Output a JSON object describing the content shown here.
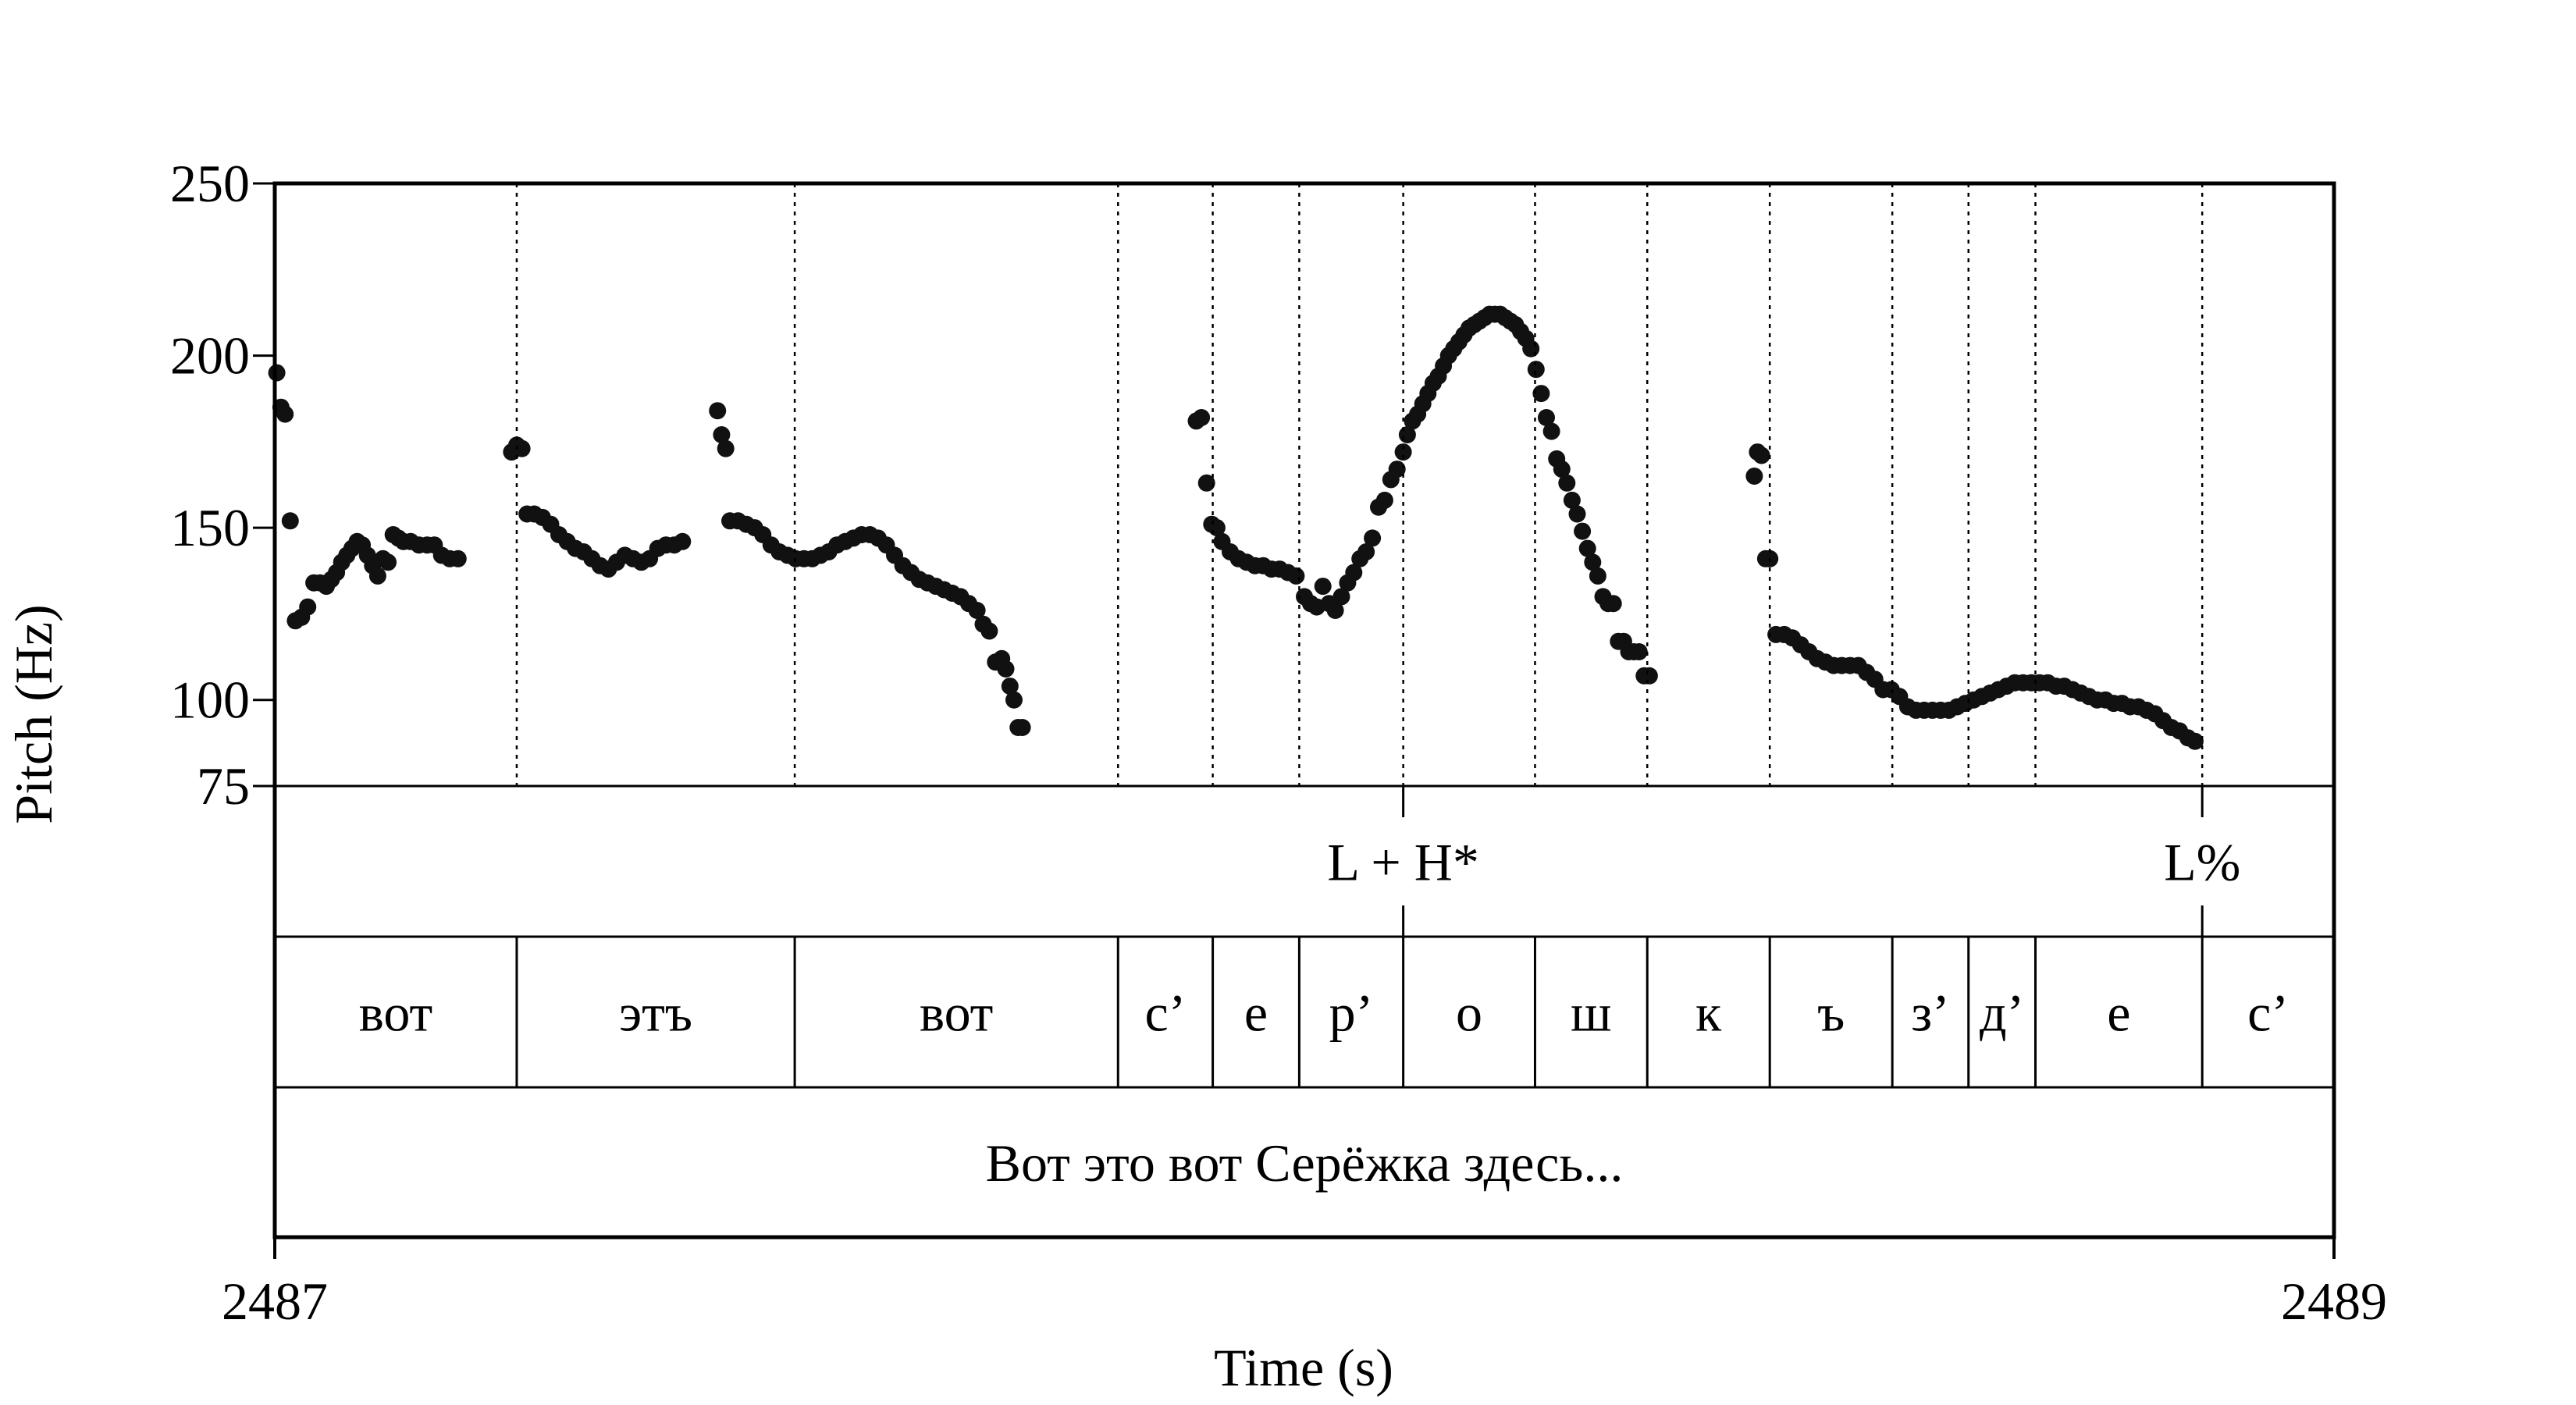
{
  "chart_data": {
    "type": "scatter",
    "xlabel": "Time (s)",
    "ylabel": "Pitch (Hz)",
    "xlim": [
      2487,
      2489
    ],
    "ylim": [
      75,
      250
    ],
    "yticks": [
      75,
      100,
      150,
      200,
      250
    ],
    "xtick_labels": [
      "2487",
      "2489"
    ],
    "grid": false,
    "colors": {
      "points": "#111111",
      "lines": "#000000"
    },
    "boundaries": [
      2487.235,
      2487.505,
      2487.819,
      2487.911,
      2487.995,
      2488.096,
      2488.224,
      2488.333,
      2488.452,
      2488.571,
      2488.645,
      2488.71,
      2488.872
    ],
    "tones_tier": [
      {
        "label": "L + H*",
        "time": 2488.096
      },
      {
        "label": "L%",
        "time": 2488.872
      }
    ],
    "segments_tier": [
      {
        "label": "вот",
        "start": 2487.0,
        "end": 2487.235
      },
      {
        "label": "этъ",
        "start": 2487.235,
        "end": 2487.505
      },
      {
        "label": "вот",
        "start": 2487.505,
        "end": 2487.819
      },
      {
        "label": "с’",
        "start": 2487.819,
        "end": 2487.911
      },
      {
        "label": "е",
        "start": 2487.911,
        "end": 2487.995
      },
      {
        "label": "р’",
        "start": 2487.995,
        "end": 2488.096
      },
      {
        "label": "о",
        "start": 2488.096,
        "end": 2488.224
      },
      {
        "label": "ш",
        "start": 2488.224,
        "end": 2488.333
      },
      {
        "label": "к",
        "start": 2488.333,
        "end": 2488.452
      },
      {
        "label": "ъ",
        "start": 2488.452,
        "end": 2488.571
      },
      {
        "label": "з’",
        "start": 2488.571,
        "end": 2488.645
      },
      {
        "label": "д’",
        "start": 2488.645,
        "end": 2488.71
      },
      {
        "label": "е",
        "start": 2488.71,
        "end": 2488.872
      },
      {
        "label": "с’",
        "start": 2488.872,
        "end": 2489.0
      }
    ],
    "sentence_tier": {
      "label": "Вот это вот Серёжка здесь...",
      "start": 2487.0,
      "end": 2489.0
    },
    "pitch_points": [
      [
        2487.002,
        195
      ],
      [
        2487.006,
        185
      ],
      [
        2487.01,
        183
      ],
      [
        2487.015,
        152
      ],
      [
        2487.02,
        123
      ],
      [
        2487.026,
        124
      ],
      [
        2487.032,
        127
      ],
      [
        2487.038,
        134
      ],
      [
        2487.044,
        134
      ],
      [
        2487.05,
        133
      ],
      [
        2487.055,
        135
      ],
      [
        2487.06,
        137
      ],
      [
        2487.065,
        140
      ],
      [
        2487.07,
        142
      ],
      [
        2487.075,
        144
      ],
      [
        2487.08,
        146
      ],
      [
        2487.085,
        145
      ],
      [
        2487.09,
        142
      ],
      [
        2487.095,
        139
      ],
      [
        2487.1,
        136
      ],
      [
        2487.105,
        141
      ],
      [
        2487.11,
        140
      ],
      [
        2487.115,
        148
      ],
      [
        2487.12,
        147
      ],
      [
        2487.125,
        146
      ],
      [
        2487.132,
        146
      ],
      [
        2487.14,
        145
      ],
      [
        2487.148,
        145
      ],
      [
        2487.155,
        145
      ],
      [
        2487.162,
        142
      ],
      [
        2487.17,
        141
      ],
      [
        2487.178,
        141
      ],
      [
        2487.23,
        172
      ],
      [
        2487.235,
        174
      ],
      [
        2487.24,
        173
      ],
      [
        2487.245,
        154
      ],
      [
        2487.252,
        154
      ],
      [
        2487.26,
        153
      ],
      [
        2487.268,
        151
      ],
      [
        2487.276,
        148
      ],
      [
        2487.284,
        146
      ],
      [
        2487.292,
        144
      ],
      [
        2487.3,
        143
      ],
      [
        2487.308,
        141
      ],
      [
        2487.316,
        139
      ],
      [
        2487.324,
        138
      ],
      [
        2487.332,
        140
      ],
      [
        2487.34,
        142
      ],
      [
        2487.348,
        141
      ],
      [
        2487.356,
        140
      ],
      [
        2487.364,
        141
      ],
      [
        2487.372,
        144
      ],
      [
        2487.38,
        145
      ],
      [
        2487.388,
        145
      ],
      [
        2487.396,
        146
      ],
      [
        2487.43,
        184
      ],
      [
        2487.434,
        177
      ],
      [
        2487.438,
        173
      ],
      [
        2487.442,
        152
      ],
      [
        2487.45,
        152
      ],
      [
        2487.458,
        151
      ],
      [
        2487.466,
        150
      ],
      [
        2487.474,
        148
      ],
      [
        2487.482,
        145
      ],
      [
        2487.49,
        143
      ],
      [
        2487.498,
        142
      ],
      [
        2487.506,
        141
      ],
      [
        2487.514,
        141
      ],
      [
        2487.522,
        141
      ],
      [
        2487.53,
        142
      ],
      [
        2487.538,
        143
      ],
      [
        2487.546,
        145
      ],
      [
        2487.554,
        146
      ],
      [
        2487.562,
        147
      ],
      [
        2487.57,
        148
      ],
      [
        2487.578,
        148
      ],
      [
        2487.586,
        147
      ],
      [
        2487.594,
        145
      ],
      [
        2487.602,
        142
      ],
      [
        2487.61,
        139
      ],
      [
        2487.618,
        137
      ],
      [
        2487.626,
        135
      ],
      [
        2487.634,
        134
      ],
      [
        2487.642,
        133
      ],
      [
        2487.65,
        132
      ],
      [
        2487.658,
        131
      ],
      [
        2487.666,
        130
      ],
      [
        2487.674,
        128
      ],
      [
        2487.682,
        126
      ],
      [
        2487.688,
        122
      ],
      [
        2487.694,
        120
      ],
      [
        2487.7,
        111
      ],
      [
        2487.706,
        112
      ],
      [
        2487.71,
        109
      ],
      [
        2487.714,
        104
      ],
      [
        2487.718,
        100
      ],
      [
        2487.722,
        92
      ],
      [
        2487.726,
        92
      ],
      [
        2487.895,
        181
      ],
      [
        2487.9,
        182
      ],
      [
        2487.905,
        163
      ],
      [
        2487.91,
        151
      ],
      [
        2487.915,
        150
      ],
      [
        2487.92,
        146
      ],
      [
        2487.928,
        143
      ],
      [
        2487.936,
        141
      ],
      [
        2487.944,
        140
      ],
      [
        2487.952,
        139
      ],
      [
        2487.96,
        139
      ],
      [
        2487.968,
        138
      ],
      [
        2487.976,
        138
      ],
      [
        2487.984,
        137
      ],
      [
        2487.992,
        136
      ],
      [
        2488.0,
        130
      ],
      [
        2488.006,
        128
      ],
      [
        2488.012,
        127
      ],
      [
        2488.018,
        133
      ],
      [
        2488.024,
        128
      ],
      [
        2488.03,
        126
      ],
      [
        2488.036,
        130
      ],
      [
        2488.042,
        134
      ],
      [
        2488.048,
        137
      ],
      [
        2488.054,
        141
      ],
      [
        2488.06,
        143
      ],
      [
        2488.066,
        147
      ],
      [
        2488.072,
        156
      ],
      [
        2488.078,
        158
      ],
      [
        2488.084,
        164
      ],
      [
        2488.09,
        167
      ],
      [
        2488.096,
        172
      ],
      [
        2488.1,
        177
      ],
      [
        2488.105,
        181
      ],
      [
        2488.11,
        183
      ],
      [
        2488.115,
        186
      ],
      [
        2488.12,
        189
      ],
      [
        2488.125,
        192
      ],
      [
        2488.13,
        194
      ],
      [
        2488.135,
        197
      ],
      [
        2488.14,
        200
      ],
      [
        2488.145,
        202
      ],
      [
        2488.15,
        204
      ],
      [
        2488.155,
        206
      ],
      [
        2488.16,
        208
      ],
      [
        2488.165,
        209
      ],
      [
        2488.17,
        210
      ],
      [
        2488.175,
        211
      ],
      [
        2488.18,
        212
      ],
      [
        2488.185,
        212
      ],
      [
        2488.19,
        212
      ],
      [
        2488.195,
        211
      ],
      [
        2488.2,
        210
      ],
      [
        2488.205,
        209
      ],
      [
        2488.21,
        207
      ],
      [
        2488.215,
        205
      ],
      [
        2488.22,
        202
      ],
      [
        2488.225,
        196
      ],
      [
        2488.23,
        189
      ],
      [
        2488.235,
        182
      ],
      [
        2488.24,
        178
      ],
      [
        2488.245,
        170
      ],
      [
        2488.25,
        167
      ],
      [
        2488.255,
        163
      ],
      [
        2488.26,
        158
      ],
      [
        2488.265,
        154
      ],
      [
        2488.27,
        149
      ],
      [
        2488.275,
        144
      ],
      [
        2488.28,
        140
      ],
      [
        2488.285,
        136
      ],
      [
        2488.29,
        130
      ],
      [
        2488.295,
        128
      ],
      [
        2488.3,
        128
      ],
      [
        2488.305,
        117
      ],
      [
        2488.31,
        117
      ],
      [
        2488.315,
        114
      ],
      [
        2488.32,
        114
      ],
      [
        2488.325,
        114
      ],
      [
        2488.33,
        107
      ],
      [
        2488.335,
        107
      ],
      [
        2488.437,
        165
      ],
      [
        2488.44,
        172
      ],
      [
        2488.444,
        171
      ],
      [
        2488.448,
        141
      ],
      [
        2488.452,
        141
      ],
      [
        2488.458,
        119
      ],
      [
        2488.466,
        119
      ],
      [
        2488.474,
        118
      ],
      [
        2488.482,
        116
      ],
      [
        2488.49,
        114
      ],
      [
        2488.498,
        112
      ],
      [
        2488.506,
        111
      ],
      [
        2488.514,
        110
      ],
      [
        2488.522,
        110
      ],
      [
        2488.53,
        110
      ],
      [
        2488.538,
        110
      ],
      [
        2488.546,
        108
      ],
      [
        2488.554,
        106
      ],
      [
        2488.562,
        103
      ],
      [
        2488.57,
        103
      ],
      [
        2488.578,
        101
      ],
      [
        2488.586,
        98
      ],
      [
        2488.594,
        97
      ],
      [
        2488.602,
        97
      ],
      [
        2488.61,
        97
      ],
      [
        2488.618,
        97
      ],
      [
        2488.626,
        97
      ],
      [
        2488.634,
        98
      ],
      [
        2488.642,
        99
      ],
      [
        2488.65,
        100
      ],
      [
        2488.658,
        101
      ],
      [
        2488.666,
        102
      ],
      [
        2488.674,
        103
      ],
      [
        2488.682,
        104
      ],
      [
        2488.69,
        105
      ],
      [
        2488.698,
        105
      ],
      [
        2488.706,
        105
      ],
      [
        2488.714,
        105
      ],
      [
        2488.722,
        105
      ],
      [
        2488.73,
        104
      ],
      [
        2488.738,
        104
      ],
      [
        2488.746,
        103
      ],
      [
        2488.754,
        102
      ],
      [
        2488.762,
        101
      ],
      [
        2488.77,
        100
      ],
      [
        2488.778,
        100
      ],
      [
        2488.786,
        99
      ],
      [
        2488.794,
        99
      ],
      [
        2488.802,
        98
      ],
      [
        2488.81,
        98
      ],
      [
        2488.818,
        97
      ],
      [
        2488.826,
        96
      ],
      [
        2488.834,
        94
      ],
      [
        2488.842,
        92
      ],
      [
        2488.85,
        91
      ],
      [
        2488.858,
        89
      ],
      [
        2488.865,
        88
      ]
    ]
  }
}
